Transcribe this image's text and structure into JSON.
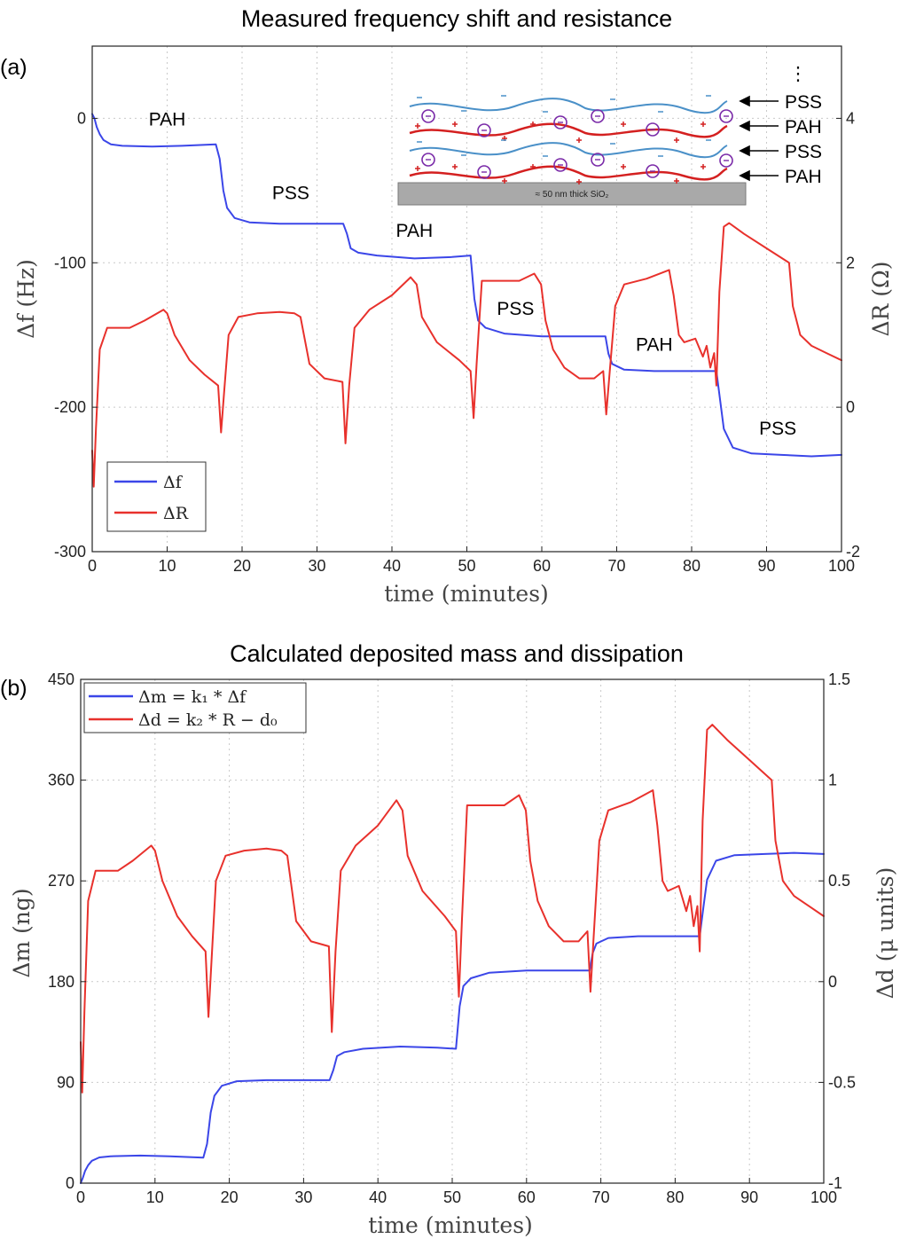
{
  "chart_data": [
    {
      "type": "line",
      "panel_label": "(a)",
      "title": "Measured frequency shift and resistance",
      "xlabel": "time (minutes)",
      "ylabel": "Δf (Hz)",
      "y2label": "ΔR (Ω)",
      "xlim": [
        0,
        100
      ],
      "ylim": [
        -300,
        50
      ],
      "y2lim": [
        -2,
        5
      ],
      "xticks": [
        "0",
        "10",
        "20",
        "30",
        "40",
        "50",
        "60",
        "70",
        "80",
        "90",
        "100"
      ],
      "yticks": [
        "0",
        "-100",
        "-200",
        "-300"
      ],
      "y2ticks": [
        "4",
        "2",
        "0",
        "-2"
      ],
      "legend": {
        "location": "bottom-left",
        "entries": [
          "Δf",
          "ΔR"
        ]
      },
      "annotations": [
        {
          "text": "PAH",
          "x": 10,
          "y": -5
        },
        {
          "text": "PSS",
          "x": 26.5,
          "y": -56
        },
        {
          "text": "PAH",
          "x": 43,
          "y": -82
        },
        {
          "text": "PSS",
          "x": 56.5,
          "y": -136
        },
        {
          "text": "PAH",
          "x": 75,
          "y": -161
        },
        {
          "text": "PSS",
          "x": 91.5,
          "y": -219
        }
      ],
      "series": [
        {
          "name": "Δf",
          "axis": "left",
          "color": "#3b46e8",
          "x": [
            0,
            0.3,
            0.6,
            1,
            1.5,
            2.5,
            4,
            8,
            12,
            16.5,
            17,
            17.5,
            18,
            19,
            21,
            25,
            30,
            33.5,
            34,
            34.5,
            35.5,
            38,
            43,
            48,
            50.5,
            51,
            51.5,
            52.5,
            55,
            60,
            65,
            68.5,
            68.9,
            69.4,
            71,
            75,
            80,
            83.3,
            83.8,
            84.3,
            85.5,
            88,
            92,
            96,
            100
          ],
          "y": [
            3,
            0,
            -6,
            -11,
            -15,
            -18,
            -19,
            -19.5,
            -19,
            -18,
            -28,
            -50,
            -62,
            -69,
            -72,
            -73,
            -73,
            -73,
            -80,
            -90,
            -93,
            -95,
            -97,
            -96,
            -95,
            -125,
            -140,
            -145,
            -149,
            -151,
            -151,
            -151,
            -163,
            -170,
            -174,
            -175,
            -175,
            -175,
            -195,
            -215,
            -228,
            -232,
            -233,
            -234,
            -233
          ]
        },
        {
          "name": "ΔR",
          "axis": "right",
          "color": "#e8312c",
          "x": [
            0,
            0.2,
            0.5,
            1,
            2,
            3,
            5,
            7,
            9.5,
            10,
            11,
            13,
            15,
            16.8,
            17.2,
            17.6,
            18.2,
            19.5,
            22,
            25,
            27,
            27.8,
            29,
            31,
            33.4,
            33.8,
            34.3,
            35,
            37,
            40,
            42.5,
            43.3,
            44,
            46,
            49,
            50.5,
            50.9,
            51.3,
            52,
            54,
            57,
            59,
            59.9,
            60.5,
            61.5,
            63,
            65,
            67,
            68.2,
            68.6,
            69,
            69.8,
            71,
            74,
            77,
            77.6,
            78.3,
            79,
            80.5,
            81.5,
            82,
            82.5,
            83,
            83.3,
            83.7,
            84.3,
            85,
            87,
            90,
            93,
            93.5,
            94.5,
            96,
            98,
            100
          ],
          "y": [
            -0.6,
            -1.1,
            -0.3,
            0.8,
            1.1,
            1.1,
            1.1,
            1.2,
            1.35,
            1.3,
            1.0,
            0.65,
            0.45,
            0.3,
            -0.35,
            0.2,
            1.0,
            1.25,
            1.3,
            1.32,
            1.3,
            1.25,
            0.6,
            0.4,
            0.35,
            -0.5,
            0.3,
            1.1,
            1.35,
            1.55,
            1.8,
            1.7,
            1.25,
            0.9,
            0.65,
            0.5,
            -0.15,
            0.6,
            1.75,
            1.75,
            1.75,
            1.85,
            1.7,
            1.2,
            0.8,
            0.55,
            0.4,
            0.4,
            0.5,
            -0.1,
            0.4,
            1.4,
            1.7,
            1.78,
            1.9,
            1.55,
            1.0,
            0.9,
            0.95,
            0.7,
            0.85,
            0.55,
            0.75,
            0.3,
            1.6,
            2.5,
            2.55,
            2.4,
            2.2,
            2.0,
            1.4,
            1.0,
            0.85,
            0.75,
            0.65
          ]
        }
      ]
    },
    {
      "type": "line",
      "panel_label": "(b)",
      "title": "Calculated deposited mass and dissipation",
      "xlabel": "time (minutes)",
      "ylabel": "Δm (ng)",
      "y2label": "Δd (μ units)",
      "xlim": [
        0,
        100
      ],
      "ylim": [
        0,
        450
      ],
      "y2lim": [
        -1,
        1.5
      ],
      "xticks": [
        "0",
        "10",
        "20",
        "30",
        "40",
        "50",
        "60",
        "70",
        "80",
        "90",
        "100"
      ],
      "yticks": [
        "450",
        "360",
        "270",
        "180",
        "90",
        "0"
      ],
      "y2ticks": [
        "1.5",
        "1",
        "0.5",
        "0",
        "-0.5",
        "-1"
      ],
      "legend": {
        "location": "top-left",
        "entries": [
          "Δm = k₁ * Δf",
          "Δd = k₂ * R − d₀"
        ]
      },
      "series": [
        {
          "name": "Δm = k₁ * Δf",
          "axis": "left",
          "color": "#3b46e8",
          "x": [
            0,
            0.3,
            0.6,
            1,
            1.5,
            2.5,
            4,
            8,
            12,
            16.5,
            17,
            17.5,
            18,
            19,
            21,
            25,
            30,
            33.5,
            34,
            34.5,
            35.5,
            38,
            43,
            48,
            50.5,
            51,
            51.5,
            52.5,
            55,
            60,
            65,
            68.5,
            68.9,
            69.4,
            71,
            75,
            80,
            83.3,
            83.8,
            84.3,
            85.5,
            88,
            92,
            96,
            100
          ],
          "y": [
            0,
            5,
            11,
            16,
            20,
            23,
            24,
            24.6,
            24,
            22.7,
            35,
            63,
            78,
            87,
            91,
            92,
            92,
            92,
            101,
            113.5,
            117,
            120,
            122,
            121,
            120,
            158,
            176,
            183,
            188,
            190,
            190,
            190,
            205.5,
            214,
            219,
            220.6,
            220.6,
            220.6,
            246,
            271,
            288,
            293,
            294,
            295,
            294
          ]
        },
        {
          "name": "Δd = k₂ * R − d₀",
          "axis": "right",
          "color": "#e8312c",
          "x": [
            0,
            0.2,
            0.5,
            1,
            2,
            3,
            5,
            7,
            9.5,
            10,
            11,
            13,
            15,
            16.8,
            17.2,
            17.6,
            18.2,
            19.5,
            22,
            25,
            27,
            27.8,
            29,
            31,
            33.4,
            33.8,
            34.3,
            35,
            37,
            40,
            42.5,
            43.3,
            44,
            46,
            49,
            50.5,
            50.9,
            51.3,
            52,
            54,
            57,
            59,
            59.9,
            60.5,
            61.5,
            63,
            65,
            67,
            68.2,
            68.6,
            69,
            69.8,
            71,
            74,
            77,
            77.6,
            78.3,
            79,
            80.5,
            81.5,
            82,
            82.5,
            83,
            83.3,
            83.7,
            84.3,
            85,
            87,
            90,
            93,
            93.5,
            94.5,
            96,
            98,
            100
          ],
          "y": [
            -0.3,
            -0.55,
            -0.15,
            0.4,
            0.55,
            0.55,
            0.55,
            0.6,
            0.675,
            0.65,
            0.5,
            0.325,
            0.225,
            0.15,
            -0.175,
            0.1,
            0.5,
            0.625,
            0.65,
            0.66,
            0.65,
            0.625,
            0.3,
            0.2,
            0.175,
            -0.25,
            0.15,
            0.55,
            0.675,
            0.775,
            0.9,
            0.85,
            0.625,
            0.45,
            0.325,
            0.25,
            -0.075,
            0.3,
            0.875,
            0.875,
            0.875,
            0.925,
            0.85,
            0.6,
            0.4,
            0.275,
            0.2,
            0.2,
            0.25,
            -0.05,
            0.2,
            0.7,
            0.85,
            0.89,
            0.95,
            0.775,
            0.5,
            0.45,
            0.475,
            0.35,
            0.425,
            0.275,
            0.375,
            0.15,
            0.8,
            1.25,
            1.275,
            1.2,
            1.1,
            1.0,
            0.7,
            0.5,
            0.425,
            0.375,
            0.325
          ]
        }
      ]
    }
  ],
  "inset": {
    "labels": [
      "⋮",
      "PSS",
      "PAH",
      "PSS",
      "PAH"
    ],
    "substrate_label": "≈ 50 nm thick SiO₂"
  }
}
